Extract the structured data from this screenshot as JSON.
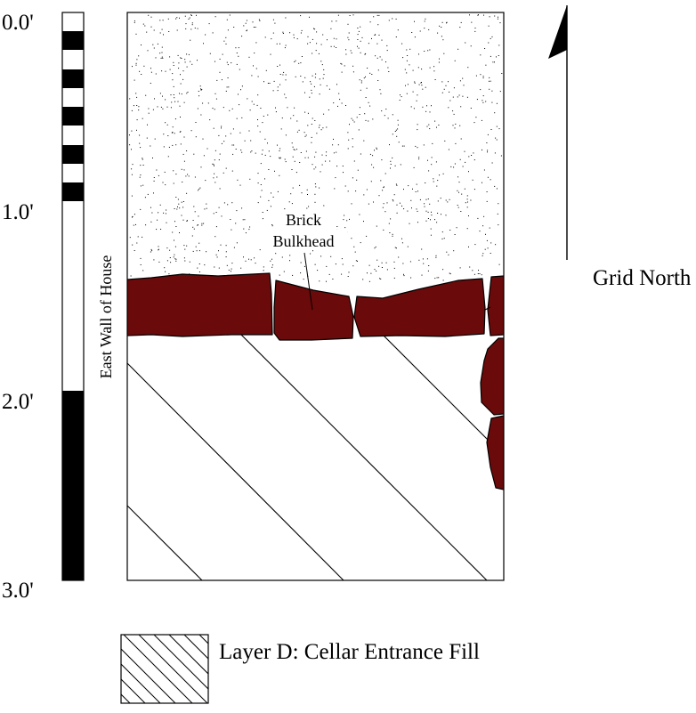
{
  "scale": {
    "labels": [
      "0.0'",
      "1.0'",
      "2.0'",
      "3.0'"
    ]
  },
  "wall_label": "East Wall of House",
  "brick_label": {
    "line1": "Brick",
    "line2": "Bulkhead"
  },
  "north_arrow": {
    "label": "Grid North"
  },
  "legend": {
    "label": "Layer D: Cellar Entrance Fill"
  },
  "colors": {
    "brick": "#6b0a0a",
    "outline": "#000000",
    "background": "#ffffff"
  },
  "icons": [
    "north-arrow-icon",
    "hatch-swatch-icon"
  ]
}
